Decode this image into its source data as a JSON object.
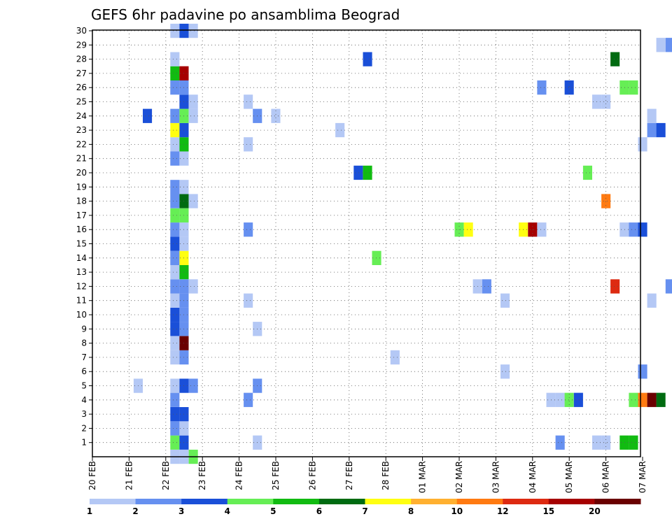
{
  "chart_data": {
    "type": "heatmap",
    "title": "GEFS 6hr padavine po ansamblima Beograd",
    "x_tick_labels": [
      "20 FEB",
      "21 FEB",
      "22 FEB",
      "23 FEB",
      "24 FEB",
      "25 FEB",
      "26 FEB",
      "27 FEB",
      "28 FEB",
      "01 MAR",
      "02 MAR",
      "03 MAR",
      "04 MAR",
      "05 MAR",
      "06 MAR",
      "07 MAR"
    ],
    "y_tick_labels": [
      "1",
      "2",
      "3",
      "4",
      "5",
      "6",
      "7",
      "8",
      "9",
      "10",
      "11",
      "12",
      "13",
      "14",
      "15",
      "16",
      "17",
      "18",
      "19",
      "20",
      "21",
      "22",
      "23",
      "24",
      "25",
      "26",
      "27",
      "28",
      "29",
      "30"
    ],
    "ylim": [
      0,
      30
    ],
    "grid": true,
    "colorbar": {
      "labels": [
        "1",
        "2",
        "3",
        "4",
        "5",
        "6",
        "7",
        "8",
        "10",
        "12",
        "15",
        "20"
      ],
      "colors": [
        "#b4c8f5",
        "#6690f0",
        "#1a4fd8",
        "#66ee55",
        "#11bb11",
        "#006b11",
        "#ffff11",
        "#ffb030",
        "#ff7a11",
        "#dd2a11",
        "#a60000",
        "#6a0000"
      ]
    },
    "cells": [
      {
        "t": 1.25,
        "m": 5,
        "v": 1
      },
      {
        "t": 2.25,
        "m": 1,
        "v": 4
      },
      {
        "t": 2.5,
        "m": 1,
        "v": 3
      },
      {
        "t": 2.75,
        "m": 0,
        "v": 4
      },
      {
        "t": 2.25,
        "m": 0,
        "v": 1
      },
      {
        "t": 2.5,
        "m": 0,
        "v": 1
      },
      {
        "t": 2.25,
        "m": 2,
        "v": 2
      },
      {
        "t": 2.5,
        "m": 2,
        "v": 1
      },
      {
        "t": 2.25,
        "m": 3,
        "v": 3
      },
      {
        "t": 2.5,
        "m": 3,
        "v": 3
      },
      {
        "t": 2.25,
        "m": 4,
        "v": 2
      },
      {
        "t": 2.25,
        "m": 5,
        "v": 1
      },
      {
        "t": 2.5,
        "m": 5,
        "v": 3
      },
      {
        "t": 2.75,
        "m": 5,
        "v": 2
      },
      {
        "t": 2.25,
        "m": 7,
        "v": 1
      },
      {
        "t": 2.5,
        "m": 7,
        "v": 2
      },
      {
        "t": 2.25,
        "m": 8,
        "v": 1
      },
      {
        "t": 2.5,
        "m": 8,
        "v": 20
      },
      {
        "t": 2.25,
        "m": 9,
        "v": 3
      },
      {
        "t": 2.5,
        "m": 9,
        "v": 2
      },
      {
        "t": 2.25,
        "m": 10,
        "v": 3
      },
      {
        "t": 2.5,
        "m": 10,
        "v": 2
      },
      {
        "t": 2.25,
        "m": 11,
        "v": 1
      },
      {
        "t": 2.5,
        "m": 11,
        "v": 2
      },
      {
        "t": 2.25,
        "m": 12,
        "v": 2
      },
      {
        "t": 2.5,
        "m": 12,
        "v": 2
      },
      {
        "t": 2.75,
        "m": 12,
        "v": 1
      },
      {
        "t": 2.25,
        "m": 13,
        "v": 1
      },
      {
        "t": 2.5,
        "m": 13,
        "v": 5
      },
      {
        "t": 2.25,
        "m": 14,
        "v": 2
      },
      {
        "t": 2.5,
        "m": 14,
        "v": 7
      },
      {
        "t": 2.25,
        "m": 15,
        "v": 3
      },
      {
        "t": 2.5,
        "m": 15,
        "v": 1
      },
      {
        "t": 2.25,
        "m": 16,
        "v": 2
      },
      {
        "t": 2.5,
        "m": 16,
        "v": 1
      },
      {
        "t": 2.25,
        "m": 17,
        "v": 4
      },
      {
        "t": 2.5,
        "m": 17,
        "v": 4
      },
      {
        "t": 2.25,
        "m": 18,
        "v": 2
      },
      {
        "t": 2.5,
        "m": 18,
        "v": 6
      },
      {
        "t": 2.75,
        "m": 18,
        "v": 1
      },
      {
        "t": 2.25,
        "m": 19,
        "v": 2
      },
      {
        "t": 2.5,
        "m": 19,
        "v": 1
      },
      {
        "t": 2.25,
        "m": 21,
        "v": 2
      },
      {
        "t": 2.5,
        "m": 21,
        "v": 1
      },
      {
        "t": 2.25,
        "m": 22,
        "v": 1
      },
      {
        "t": 2.5,
        "m": 22,
        "v": 5
      },
      {
        "t": 2.25,
        "m": 23,
        "v": 7
      },
      {
        "t": 2.5,
        "m": 23,
        "v": 3
      },
      {
        "t": 2.25,
        "m": 24,
        "v": 2
      },
      {
        "t": 2.5,
        "m": 24,
        "v": 4
      },
      {
        "t": 2.75,
        "m": 24,
        "v": 1
      },
      {
        "t": 2.5,
        "m": 25,
        "v": 3
      },
      {
        "t": 2.75,
        "m": 25,
        "v": 1
      },
      {
        "t": 2.25,
        "m": 26,
        "v": 2
      },
      {
        "t": 2.5,
        "m": 26,
        "v": 2
      },
      {
        "t": 2.25,
        "m": 27,
        "v": 5
      },
      {
        "t": 2.5,
        "m": 27,
        "v": 15
      },
      {
        "t": 2.25,
        "m": 28,
        "v": 1
      },
      {
        "t": 2.25,
        "m": 30,
        "v": 1
      },
      {
        "t": 2.5,
        "m": 30,
        "v": 3
      },
      {
        "t": 2.75,
        "m": 30,
        "v": 1
      },
      {
        "t": 1.5,
        "m": 24,
        "v": 3
      },
      {
        "t": 4.25,
        "m": 4,
        "v": 2
      },
      {
        "t": 4.25,
        "m": 11,
        "v": 1
      },
      {
        "t": 4.25,
        "m": 16,
        "v": 2
      },
      {
        "t": 4.25,
        "m": 22,
        "v": 1
      },
      {
        "t": 4.25,
        "m": 25,
        "v": 1
      },
      {
        "t": 4.5,
        "m": 1,
        "v": 1
      },
      {
        "t": 4.5,
        "m": 5,
        "v": 2
      },
      {
        "t": 4.5,
        "m": 9,
        "v": 1
      },
      {
        "t": 4.5,
        "m": 24,
        "v": 2
      },
      {
        "t": 5.0,
        "m": 24,
        "v": 1
      },
      {
        "t": 6.75,
        "m": 23,
        "v": 1
      },
      {
        "t": 7.25,
        "m": 20,
        "v": 3
      },
      {
        "t": 7.5,
        "m": 20,
        "v": 5
      },
      {
        "t": 7.5,
        "m": 28,
        "v": 3
      },
      {
        "t": 7.75,
        "m": 14,
        "v": 4
      },
      {
        "t": 8.25,
        "m": 7,
        "v": 1
      },
      {
        "t": 10.0,
        "m": 16,
        "v": 4
      },
      {
        "t": 10.25,
        "m": 16,
        "v": 7
      },
      {
        "t": 10.5,
        "m": 12,
        "v": 1
      },
      {
        "t": 10.75,
        "m": 12,
        "v": 2
      },
      {
        "t": 11.25,
        "m": 6,
        "v": 1
      },
      {
        "t": 11.25,
        "m": 11,
        "v": 1
      },
      {
        "t": 11.75,
        "m": 16,
        "v": 7
      },
      {
        "t": 12.0,
        "m": 16,
        "v": 15
      },
      {
        "t": 12.25,
        "m": 16,
        "v": 1
      },
      {
        "t": 12.25,
        "m": 26,
        "v": 2
      },
      {
        "t": 12.5,
        "m": 4,
        "v": 1
      },
      {
        "t": 12.75,
        "m": 4,
        "v": 1
      },
      {
        "t": 12.75,
        "m": 1,
        "v": 2
      },
      {
        "t": 13.0,
        "m": 4,
        "v": 4
      },
      {
        "t": 13.0,
        "m": 26,
        "v": 3
      },
      {
        "t": 13.25,
        "m": 4,
        "v": 3
      },
      {
        "t": 13.5,
        "m": 20,
        "v": 4
      },
      {
        "t": 13.75,
        "m": 1,
        "v": 1
      },
      {
        "t": 14.0,
        "m": 1,
        "v": 1
      },
      {
        "t": 13.75,
        "m": 25,
        "v": 1
      },
      {
        "t": 14.0,
        "m": 25,
        "v": 1
      },
      {
        "t": 14.0,
        "m": 18,
        "v": 10
      },
      {
        "t": 14.25,
        "m": 28,
        "v": 6
      },
      {
        "t": 14.25,
        "m": 12,
        "v": 12
      },
      {
        "t": 14.5,
        "m": 16,
        "v": 1
      },
      {
        "t": 14.5,
        "m": 1,
        "v": 5
      },
      {
        "t": 14.75,
        "m": 1,
        "v": 5
      },
      {
        "t": 14.5,
        "m": 26,
        "v": 4
      },
      {
        "t": 14.75,
        "m": 26,
        "v": 4
      },
      {
        "t": 14.75,
        "m": 4,
        "v": 4
      },
      {
        "t": 14.75,
        "m": 16,
        "v": 2
      },
      {
        "t": 15.0,
        "m": 4,
        "v": 10
      },
      {
        "t": 15.0,
        "m": 16,
        "v": 3
      },
      {
        "t": 15.0,
        "m": 6,
        "v": 2
      },
      {
        "t": 15.0,
        "m": 22,
        "v": 1
      },
      {
        "t": 15.25,
        "m": 4,
        "v": 20
      },
      {
        "t": 15.25,
        "m": 11,
        "v": 1
      },
      {
        "t": 15.25,
        "m": 23,
        "v": 2
      },
      {
        "t": 15.25,
        "m": 24,
        "v": 1
      },
      {
        "t": 15.5,
        "m": 4,
        "v": 6
      },
      {
        "t": 15.5,
        "m": 23,
        "v": 3
      },
      {
        "t": 15.5,
        "m": 29,
        "v": 1
      },
      {
        "t": 15.75,
        "m": 12,
        "v": 2
      },
      {
        "t": 15.75,
        "m": 29,
        "v": 2
      }
    ]
  }
}
